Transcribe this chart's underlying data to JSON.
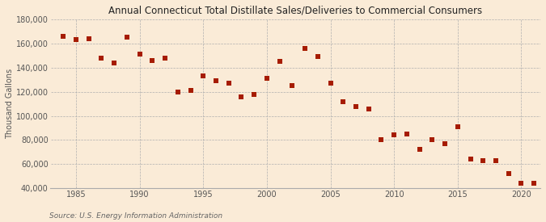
{
  "title": "Annual Connecticut Total Distillate Sales/Deliveries to Commercial Consumers",
  "ylabel": "Thousand Gallons",
  "source": "Source: U.S. Energy Information Administration",
  "background_color": "#faebd7",
  "plot_bg_color": "#faebd7",
  "marker_color": "#a61c00",
  "marker": "s",
  "marker_size": 18,
  "xlim": [
    1983.0,
    2021.5
  ],
  "ylim": [
    40000,
    180000
  ],
  "yticks": [
    40000,
    60000,
    80000,
    100000,
    120000,
    140000,
    160000,
    180000
  ],
  "xticks": [
    1985,
    1990,
    1995,
    2000,
    2005,
    2010,
    2015,
    2020
  ],
  "years": [
    1984,
    1985,
    1986,
    1987,
    1988,
    1989,
    1990,
    1991,
    1992,
    1993,
    1994,
    1995,
    1996,
    1997,
    1998,
    1999,
    2000,
    2001,
    2002,
    2003,
    2004,
    2005,
    2006,
    2007,
    2008,
    2009,
    2010,
    2011,
    2012,
    2013,
    2014,
    2015,
    2016,
    2017,
    2018,
    2019,
    2020,
    2021
  ],
  "values": [
    166000,
    163000,
    164000,
    148000,
    144000,
    165000,
    151000,
    146000,
    148000,
    120000,
    121000,
    133000,
    129000,
    127000,
    116000,
    118000,
    131000,
    145000,
    125000,
    156000,
    149000,
    127000,
    112000,
    108000,
    106000,
    80000,
    84000,
    85000,
    72000,
    80000,
    77000,
    91000,
    64000,
    63000,
    63000,
    52000,
    44000,
    44000
  ]
}
